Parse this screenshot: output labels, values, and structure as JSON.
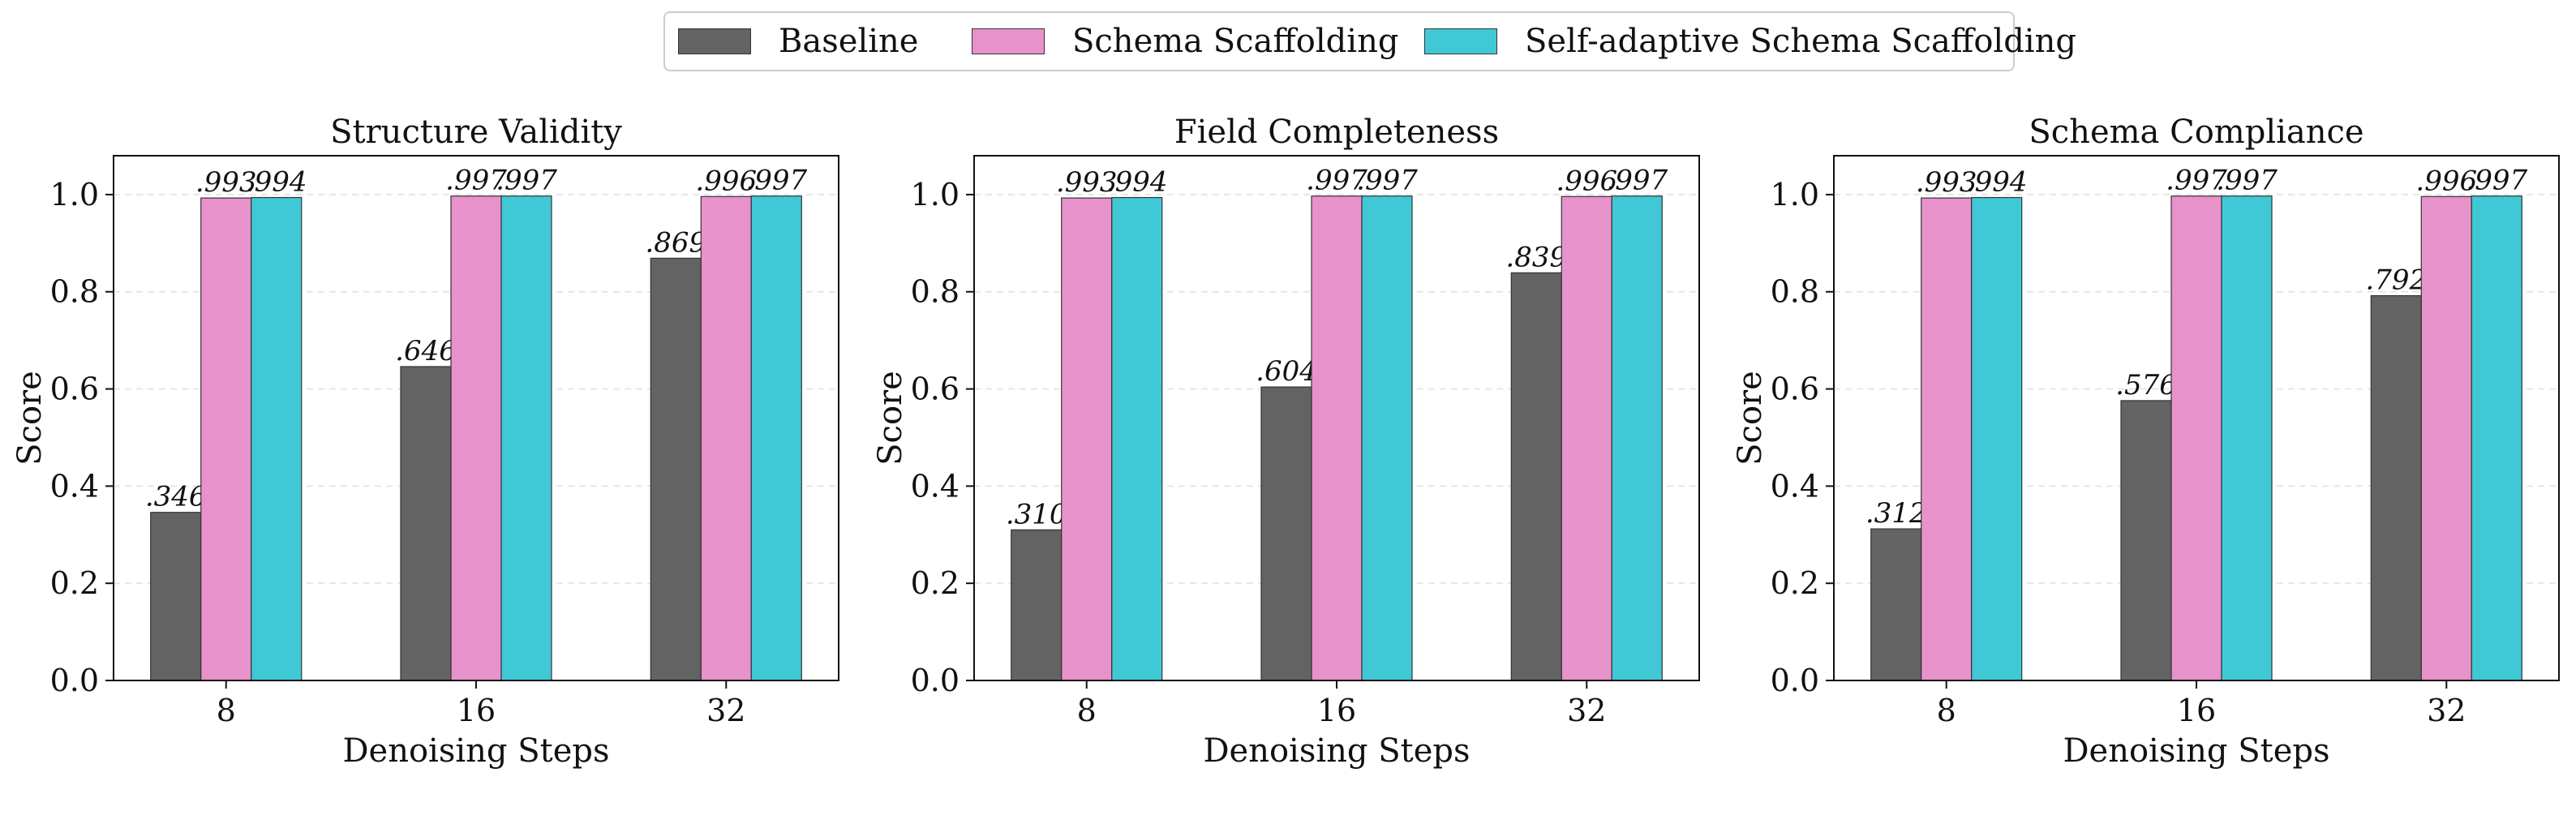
{
  "legend": [
    {
      "label": "Baseline",
      "color": "#636363"
    },
    {
      "label": "Schema Scaffolding",
      "color": "#e892cb"
    },
    {
      "label": "Self-adaptive Schema Scaffolding",
      "color": "#40c8d6"
    }
  ],
  "chart_data": [
    {
      "type": "bar",
      "title": "Structure Validity",
      "xlabel": "Denoising Steps",
      "ylabel": "Score",
      "ylim": [
        0,
        1.08
      ],
      "yticks": [
        "0.0",
        "0.2",
        "0.4",
        "0.6",
        "0.8",
        "1.0"
      ],
      "grid": true,
      "categories": [
        "8",
        "16",
        "32"
      ],
      "series": [
        {
          "name": "Baseline",
          "values": [
            0.346,
            0.646,
            0.869
          ],
          "labels": [
            ".346",
            ".646",
            ".869"
          ]
        },
        {
          "name": "Schema Scaffolding",
          "values": [
            0.993,
            0.997,
            0.996
          ],
          "labels": [
            ".993",
            ".997",
            ".996"
          ]
        },
        {
          "name": "Self-adaptive Schema Scaffolding",
          "values": [
            0.994,
            0.997,
            0.997
          ],
          "labels": [
            ".994",
            ".997",
            ".997"
          ]
        }
      ]
    },
    {
      "type": "bar",
      "title": "Field Completeness",
      "xlabel": "Denoising Steps",
      "ylabel": "Score",
      "ylim": [
        0,
        1.08
      ],
      "yticks": [
        "0.0",
        "0.2",
        "0.4",
        "0.6",
        "0.8",
        "1.0"
      ],
      "grid": true,
      "categories": [
        "8",
        "16",
        "32"
      ],
      "series": [
        {
          "name": "Baseline",
          "values": [
            0.31,
            0.604,
            0.839
          ],
          "labels": [
            ".310",
            ".604",
            ".839"
          ]
        },
        {
          "name": "Schema Scaffolding",
          "values": [
            0.993,
            0.997,
            0.996
          ],
          "labels": [
            ".993",
            ".997",
            ".996"
          ]
        },
        {
          "name": "Self-adaptive Schema Scaffolding",
          "values": [
            0.994,
            0.997,
            0.997
          ],
          "labels": [
            ".994",
            ".997",
            ".997"
          ]
        }
      ]
    },
    {
      "type": "bar",
      "title": "Schema Compliance",
      "xlabel": "Denoising Steps",
      "ylabel": "Score",
      "ylim": [
        0,
        1.08
      ],
      "yticks": [
        "0.0",
        "0.2",
        "0.4",
        "0.6",
        "0.8",
        "1.0"
      ],
      "grid": true,
      "categories": [
        "8",
        "16",
        "32"
      ],
      "series": [
        {
          "name": "Baseline",
          "values": [
            0.312,
            0.576,
            0.792
          ],
          "labels": [
            ".312",
            ".576",
            ".792"
          ]
        },
        {
          "name": "Schema Scaffolding",
          "values": [
            0.993,
            0.997,
            0.996
          ],
          "labels": [
            ".993",
            ".997",
            ".996"
          ]
        },
        {
          "name": "Self-adaptive Schema Scaffolding",
          "values": [
            0.994,
            0.997,
            0.997
          ],
          "labels": [
            ".994",
            ".997",
            ".997"
          ]
        }
      ]
    }
  ]
}
